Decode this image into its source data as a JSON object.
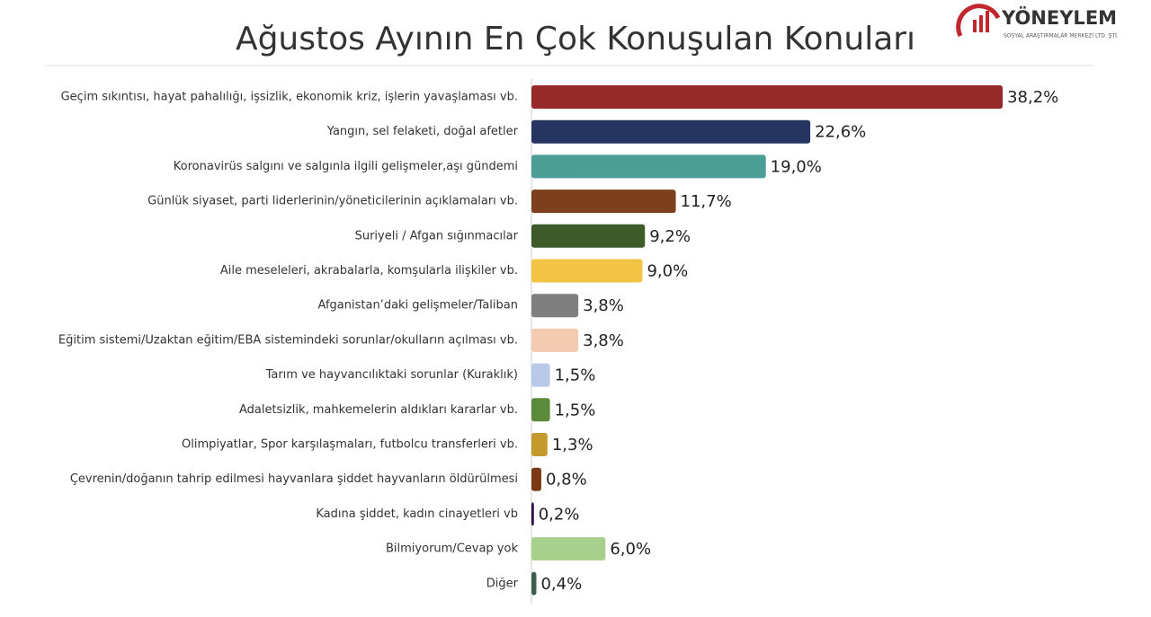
{
  "logo": {
    "name": "YÖNEYLEM",
    "tagline": "SOSYAL ARAŞTIRMALAR MERKEZİ LTD. ŞTİ."
  },
  "chart_data": {
    "type": "bar",
    "orientation": "horizontal",
    "title": "Ağustos Ayının En Çok Konuşulan Konuları",
    "categories": [
      "Geçim sıkıntısı, hayat pahalılığı, işsizlik, ekonomik kriz, işlerin yavaşlaması vb.",
      "Yangın, sel felaketi, doğal afetler",
      "Koronavirüs salgını ve salgınla ilgili gelişmeler,aşı gündemi",
      "Günlük siyaset, parti liderlerinin/yöneticilerinin açıklamaları vb.",
      "Suriyeli / Afgan sığınmacılar",
      "Aile meseleleri, akrabalarla, komşularla ilişkiler vb.",
      "Afganistan’daki gelişmeler/Taliban",
      "Eğitim sistemi/Uzaktan eğitim/EBA sistemindeki sorunlar/okulların açılması vb.",
      "Tarım ve hayvancılıktaki sorunlar (Kuraklık)",
      "Adaletsizlik, mahkemelerin aldıkları kararlar vb.",
      "Olimpiyatlar, Spor karşılaşmaları, futbolcu transferleri vb.",
      "Çevrenin/doğanın tahrip edilmesi hayvanlara şiddet hayvanların öldürülmesi",
      "Kadına şiddet, kadın cinayetleri vb",
      "Bilmiyorum/Cevap yok",
      "Diğer"
    ],
    "values": [
      38.2,
      22.6,
      19.0,
      11.7,
      9.2,
      9.0,
      3.8,
      3.8,
      1.5,
      1.5,
      1.3,
      0.8,
      0.2,
      6.0,
      0.4
    ],
    "value_labels": [
      "38,2%",
      "22,6%",
      "19,0%",
      "11,7%",
      "9,2%",
      "9,0%",
      "3,8%",
      "3,8%",
      "1,5%",
      "1,5%",
      "1,3%",
      "0,8%",
      "0,2%",
      "6,0%",
      "0,4%"
    ],
    "colors": [
      "#962a2a",
      "#253561",
      "#4a9e95",
      "#7d3f1c",
      "#3c5a2a",
      "#f3c443",
      "#7f7f7f",
      "#f2cbb0",
      "#b8c8e8",
      "#5b8a3a",
      "#c49a2c",
      "#7b3a14",
      "#2a0a4a",
      "#a8d08d",
      "#3e5e4e"
    ]
  }
}
